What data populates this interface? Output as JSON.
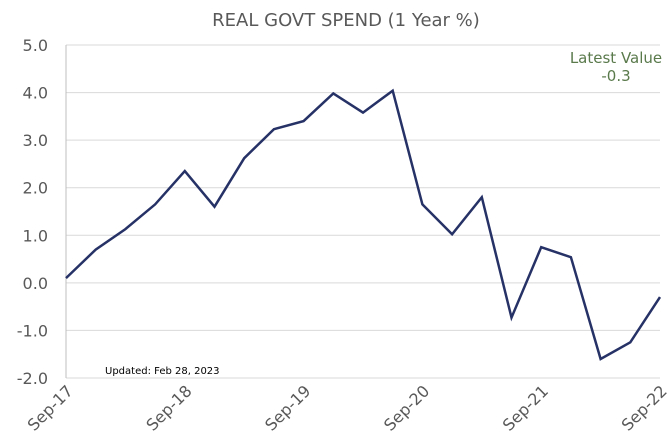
{
  "chart_data": {
    "type": "line",
    "title": "REAL GOVT SPEND (1 Year %)",
    "xlabel": "",
    "ylabel": "",
    "ylim": [
      -2.0,
      5.0
    ],
    "yticks": [
      "5.0",
      "4.0",
      "3.0",
      "2.0",
      "1.0",
      "0.0",
      "-1.0",
      "-2.0"
    ],
    "ytick_values": [
      5,
      4,
      3,
      2,
      1,
      0,
      -1,
      -2
    ],
    "xtick_labels": [
      "Sep-17",
      "Sep-18",
      "Sep-19",
      "Sep-20",
      "Sep-21",
      "Sep-22"
    ],
    "x": [
      "Sep-17",
      "Dec-17",
      "Mar-18",
      "Jun-18",
      "Sep-18",
      "Dec-18",
      "Mar-19",
      "Jun-19",
      "Sep-19",
      "Dec-19",
      "Mar-20",
      "Jun-20",
      "Sep-20",
      "Dec-20",
      "Mar-21",
      "Jun-21",
      "Sep-21",
      "Dec-21",
      "Mar-22",
      "Jun-22",
      "Sep-22"
    ],
    "series": [
      {
        "values": [
          0.1,
          0.7,
          1.13,
          1.65,
          2.35,
          1.6,
          2.62,
          3.23,
          3.4,
          3.98,
          3.58,
          4.04,
          1.65,
          1.02,
          1.8,
          -0.73,
          0.75,
          0.54,
          -1.6,
          -1.25,
          -0.3
        ],
        "color": "#263166"
      }
    ],
    "grid": true,
    "legend": "none",
    "annotations": {
      "latest_label": "Latest Value",
      "latest_value": "-0.3",
      "latest_color": "#5a7a4c",
      "updated": "Updated: Feb 28, 2023"
    }
  }
}
